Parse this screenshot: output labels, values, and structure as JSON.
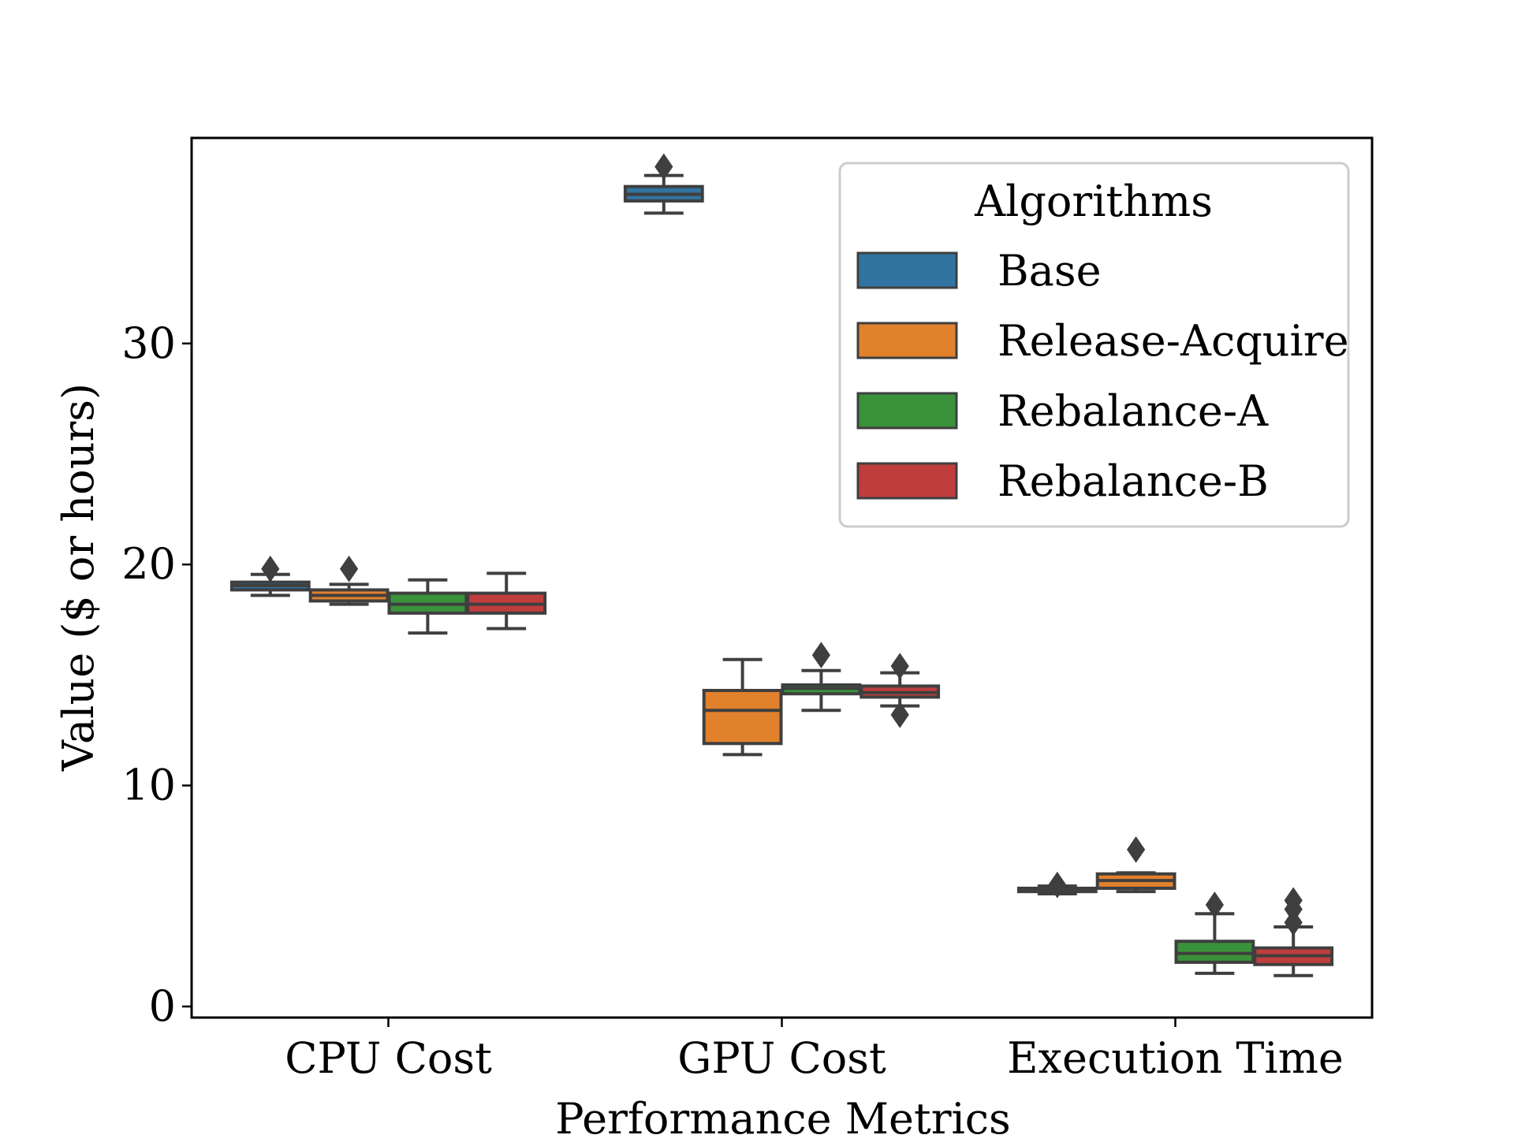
{
  "chart_data": {
    "type": "box",
    "title": "",
    "xlabel": "Performance Metrics",
    "ylabel": "Value ($ or hours)",
    "categories": [
      "CPU Cost",
      "GPU Cost",
      "Execution Time"
    ],
    "ylim": [
      -0.5,
      39.3
    ],
    "yticks": [
      0,
      10,
      20,
      30
    ],
    "legend": {
      "title": "Algorithms",
      "position": "upper right"
    },
    "colors": {
      "Base": "#3274a1",
      "Release-Acquire": "#e1812c",
      "Rebalance-A": "#3a923a",
      "Rebalance-B": "#c03d3e",
      "line": "#3f3f3f"
    },
    "series": [
      {
        "name": "Base",
        "boxes": [
          {
            "whisker_low": 18.6,
            "q1": 18.85,
            "median": 19.05,
            "q3": 19.2,
            "whisker_high": 19.55,
            "outliers": [
              19.8
            ]
          },
          {
            "whisker_low": 35.9,
            "q1": 36.45,
            "median": 36.75,
            "q3": 37.1,
            "whisker_high": 37.6,
            "outliers": [
              38.0
            ]
          },
          {
            "whisker_low": 5.1,
            "q1": 5.2,
            "median": 5.3,
            "q3": 5.35,
            "whisker_high": 5.45,
            "outliers": [
              5.5
            ]
          }
        ]
      },
      {
        "name": "Release-Acquire",
        "boxes": [
          {
            "whisker_low": 18.2,
            "q1": 18.35,
            "median": 18.6,
            "q3": 18.85,
            "whisker_high": 19.1,
            "outliers": [
              19.8
            ]
          },
          {
            "whisker_low": 11.4,
            "q1": 11.9,
            "median": 13.4,
            "q3": 14.3,
            "whisker_high": 15.7,
            "outliers": []
          },
          {
            "whisker_low": 5.2,
            "q1": 5.35,
            "median": 5.7,
            "q3": 6.0,
            "whisker_high": 6.05,
            "outliers": [
              7.1
            ]
          }
        ]
      },
      {
        "name": "Rebalance-A",
        "boxes": [
          {
            "whisker_low": 16.9,
            "q1": 17.8,
            "median": 18.2,
            "q3": 18.7,
            "whisker_high": 19.3,
            "outliers": []
          },
          {
            "whisker_low": 13.4,
            "q1": 14.15,
            "median": 14.4,
            "q3": 14.55,
            "whisker_high": 15.2,
            "outliers": [
              15.9
            ]
          },
          {
            "whisker_low": 1.5,
            "q1": 2.0,
            "median": 2.4,
            "q3": 2.95,
            "whisker_high": 4.2,
            "outliers": [
              4.6
            ]
          }
        ]
      },
      {
        "name": "Rebalance-B",
        "boxes": [
          {
            "whisker_low": 17.1,
            "q1": 17.8,
            "median": 18.2,
            "q3": 18.7,
            "whisker_high": 19.6,
            "outliers": []
          },
          {
            "whisker_low": 13.6,
            "q1": 14.0,
            "median": 14.2,
            "q3": 14.5,
            "whisker_high": 15.1,
            "outliers": [
              13.2,
              15.4
            ]
          },
          {
            "whisker_low": 1.4,
            "q1": 1.9,
            "median": 2.3,
            "q3": 2.65,
            "whisker_high": 3.6,
            "outliers": [
              3.8,
              4.4,
              4.8
            ]
          }
        ]
      }
    ]
  }
}
